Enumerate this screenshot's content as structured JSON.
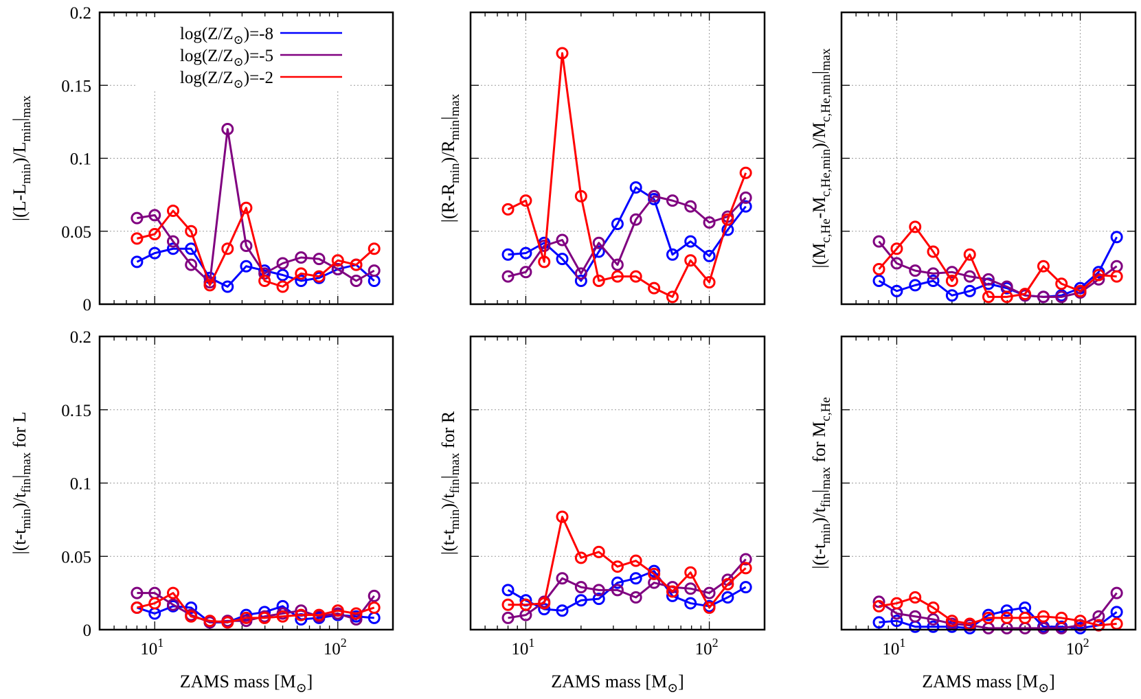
{
  "figure": {
    "legend": [
      {
        "label": "log(Z/Z⊙)=-8",
        "color": "#0000ff"
      },
      {
        "label": "log(Z/Z⊙)=-5",
        "color": "#800080"
      },
      {
        "label": "log(Z/Z⊙)=-2",
        "color": "#ff0000"
      }
    ],
    "xlabel": "ZAMS mass [M⊙]"
  },
  "chart_data": [
    {
      "type": "line",
      "panel": "top-left",
      "ylabel": "|(L-Lmin)/Lmin|max",
      "xscale": "log",
      "xlim": [
        5,
        200
      ],
      "ylim": [
        0,
        0.2
      ],
      "yticks": [
        0,
        0.05,
        0.1,
        0.15,
        0.2
      ],
      "yticklabels": [
        "0",
        "0.05",
        "0.1",
        "0.15",
        "0.2"
      ],
      "xticklabels": [],
      "grid": true,
      "legend": "top-left",
      "x": [
        8,
        10,
        12.6,
        15.8,
        20,
        25,
        31.6,
        39.8,
        50,
        63,
        79,
        100,
        126,
        158
      ],
      "series": [
        {
          "name": "log(Z/Z⊙)=-8",
          "color": "#0000ff",
          "values": [
            0.029,
            0.035,
            0.038,
            0.038,
            0.018,
            0.012,
            0.026,
            0.023,
            0.02,
            0.016,
            0.018,
            0.024,
            0.027,
            0.016
          ]
        },
        {
          "name": "log(Z/Z⊙)=-5",
          "color": "#800080",
          "values": [
            0.059,
            0.061,
            0.043,
            0.027,
            0.015,
            0.12,
            0.04,
            0.021,
            0.028,
            0.032,
            0.031,
            0.024,
            0.016,
            0.023
          ]
        },
        {
          "name": "log(Z/Z⊙)=-2",
          "color": "#ff0000",
          "values": [
            0.045,
            0.048,
            0.064,
            0.05,
            0.013,
            0.038,
            0.066,
            0.016,
            0.012,
            0.021,
            0.019,
            0.03,
            0.027,
            0.038
          ]
        }
      ]
    },
    {
      "type": "line",
      "panel": "top-middle",
      "ylabel": "|(R-Rmin)/Rmin|max",
      "xscale": "log",
      "xlim": [
        5,
        200
      ],
      "ylim": [
        0,
        0.2
      ],
      "yticks": [
        0,
        0.05,
        0.1,
        0.15,
        0.2
      ],
      "yticklabels": [],
      "xticklabels": [],
      "grid": true,
      "x": [
        8,
        10,
        12.6,
        15.8,
        20,
        25,
        31.6,
        39.8,
        50,
        63,
        79,
        100,
        126,
        158
      ],
      "series": [
        {
          "name": "log(Z/Z⊙)=-8",
          "color": "#0000ff",
          "values": [
            0.034,
            0.035,
            0.042,
            0.031,
            0.016,
            0.036,
            0.055,
            0.08,
            0.072,
            0.034,
            0.043,
            0.033,
            0.051,
            0.067
          ]
        },
        {
          "name": "log(Z/Z⊙)=-5",
          "color": "#800080",
          "values": [
            0.019,
            0.022,
            0.04,
            0.044,
            0.021,
            0.042,
            0.027,
            0.058,
            0.074,
            0.071,
            0.067,
            0.056,
            0.06,
            0.073
          ]
        },
        {
          "name": "log(Z/Z⊙)=-2",
          "color": "#ff0000",
          "values": [
            0.065,
            0.071,
            0.029,
            0.172,
            0.074,
            0.016,
            0.019,
            0.019,
            0.011,
            0.005,
            0.03,
            0.015,
            0.058,
            0.09
          ]
        }
      ]
    },
    {
      "type": "line",
      "panel": "top-right",
      "ylabel": "|(Mc,He-Mc,He,min)/Mc,He,min|max",
      "xscale": "log",
      "xlim": [
        5,
        200
      ],
      "ylim": [
        0,
        0.2
      ],
      "yticks": [
        0,
        0.05,
        0.1,
        0.15,
        0.2
      ],
      "yticklabels": [],
      "xticklabels": [],
      "grid": true,
      "x": [
        8,
        10,
        12.6,
        15.8,
        20,
        25,
        31.6,
        39.8,
        50,
        63,
        79,
        100,
        126,
        158
      ],
      "series": [
        {
          "name": "log(Z/Z⊙)=-8",
          "color": "#0000ff",
          "values": [
            0.016,
            0.009,
            0.013,
            0.016,
            0.006,
            0.009,
            0.014,
            0.011,
            0.006,
            0.005,
            0.006,
            0.011,
            0.022,
            0.046
          ]
        },
        {
          "name": "log(Z/Z⊙)=-5",
          "color": "#800080",
          "values": [
            0.043,
            0.028,
            0.023,
            0.021,
            0.022,
            0.019,
            0.017,
            0.012,
            0.006,
            0.005,
            0.005,
            0.008,
            0.017,
            0.026
          ]
        },
        {
          "name": "log(Z/Z⊙)=-2",
          "color": "#ff0000",
          "values": [
            0.024,
            0.038,
            0.053,
            0.036,
            0.016,
            0.034,
            0.005,
            0.005,
            0.007,
            0.026,
            0.014,
            0.009,
            0.02,
            0.019
          ]
        }
      ]
    },
    {
      "type": "line",
      "panel": "bottom-left",
      "ylabel": "|(t-tmin)/tfin|max for L",
      "xscale": "log",
      "xlim": [
        5,
        200
      ],
      "ylim": [
        0,
        0.2
      ],
      "yticks": [
        0,
        0.05,
        0.1,
        0.15,
        0.2
      ],
      "yticklabels": [
        "0",
        "0.05",
        "0.1",
        "0.15",
        "0.2"
      ],
      "xticklabels": [
        "10",
        "10"
      ],
      "xtickexps": [
        "1",
        "2"
      ],
      "grid": true,
      "x": [
        8,
        10,
        12.6,
        15.8,
        20,
        25,
        31.6,
        39.8,
        50,
        63,
        79,
        100,
        126,
        158
      ],
      "series": [
        {
          "name": "log(Z/Z⊙)=-8",
          "color": "#0000ff",
          "values": [
            0.015,
            0.011,
            0.016,
            0.015,
            0.005,
            0.005,
            0.01,
            0.012,
            0.016,
            0.007,
            0.008,
            0.01,
            0.009,
            0.008
          ]
        },
        {
          "name": "log(Z/Z⊙)=-5",
          "color": "#800080",
          "values": [
            0.025,
            0.025,
            0.017,
            0.01,
            0.005,
            0.006,
            0.006,
            0.009,
            0.011,
            0.013,
            0.009,
            0.011,
            0.007,
            0.023
          ]
        },
        {
          "name": "log(Z/Z⊙)=-2",
          "color": "#ff0000",
          "values": [
            0.015,
            0.018,
            0.025,
            0.009,
            0.006,
            0.005,
            0.008,
            0.008,
            0.009,
            0.01,
            0.01,
            0.013,
            0.011,
            0.015
          ]
        }
      ]
    },
    {
      "type": "line",
      "panel": "bottom-middle",
      "ylabel": "|(t-tmin)/tfin|max for R",
      "xscale": "log",
      "xlim": [
        5,
        200
      ],
      "ylim": [
        0,
        0.2
      ],
      "yticks": [
        0,
        0.05,
        0.1,
        0.15,
        0.2
      ],
      "yticklabels": [],
      "xticklabels": [
        "10",
        "10"
      ],
      "xtickexps": [
        "1",
        "2"
      ],
      "grid": true,
      "x": [
        8,
        10,
        12.6,
        15.8,
        20,
        25,
        31.6,
        39.8,
        50,
        63,
        79,
        100,
        126,
        158
      ],
      "series": [
        {
          "name": "log(Z/Z⊙)=-8",
          "color": "#0000ff",
          "values": [
            0.027,
            0.02,
            0.014,
            0.013,
            0.02,
            0.021,
            0.032,
            0.035,
            0.04,
            0.023,
            0.018,
            0.016,
            0.022,
            0.029
          ]
        },
        {
          "name": "log(Z/Z⊙)=-5",
          "color": "#800080",
          "values": [
            0.008,
            0.01,
            0.019,
            0.035,
            0.029,
            0.027,
            0.027,
            0.022,
            0.032,
            0.029,
            0.028,
            0.025,
            0.034,
            0.048
          ]
        },
        {
          "name": "log(Z/Z⊙)=-2",
          "color": "#ff0000",
          "values": [
            0.017,
            0.017,
            0.018,
            0.077,
            0.049,
            0.053,
            0.043,
            0.047,
            0.038,
            0.026,
            0.039,
            0.015,
            0.031,
            0.042
          ]
        }
      ]
    },
    {
      "type": "line",
      "panel": "bottom-right",
      "ylabel": "|(t-tmin)/tfin|max for Mc,He",
      "xscale": "log",
      "xlim": [
        5,
        200
      ],
      "ylim": [
        0,
        0.2
      ],
      "yticks": [
        0,
        0.05,
        0.1,
        0.15,
        0.2
      ],
      "yticklabels": [],
      "xticklabels": [
        "10",
        "10"
      ],
      "xtickexps": [
        "1",
        "2"
      ],
      "grid": true,
      "x": [
        8,
        10,
        12.6,
        15.8,
        20,
        25,
        31.6,
        39.8,
        50,
        63,
        79,
        100,
        126,
        158
      ],
      "series": [
        {
          "name": "log(Z/Z⊙)=-8",
          "color": "#0000ff",
          "values": [
            0.005,
            0.006,
            0.002,
            0.002,
            0.002,
            0.001,
            0.01,
            0.013,
            0.015,
            0.002,
            0.002,
            0.001,
            0.003,
            0.012
          ]
        },
        {
          "name": "log(Z/Z⊙)=-5",
          "color": "#800080",
          "values": [
            0.019,
            0.011,
            0.009,
            0.007,
            0.004,
            0.003,
            0.001,
            0.001,
            0.001,
            0.001,
            0.001,
            0.003,
            0.009,
            0.025
          ]
        },
        {
          "name": "log(Z/Z⊙)=-2",
          "color": "#ff0000",
          "values": [
            0.016,
            0.018,
            0.022,
            0.015,
            0.006,
            0.004,
            0.008,
            0.008,
            0.008,
            0.009,
            0.008,
            0.006,
            0.003,
            0.004
          ]
        }
      ]
    }
  ]
}
